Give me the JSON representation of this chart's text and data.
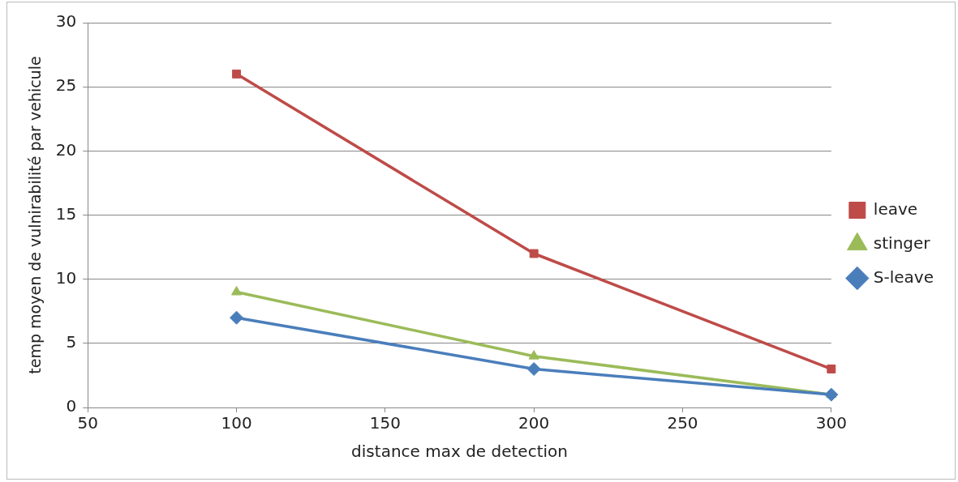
{
  "chart_data": {
    "type": "line",
    "xlabel": "distance max de detection",
    "ylabel": "temp moyen de vulnirabilité par vehicule",
    "x": [
      100,
      200,
      300
    ],
    "series": [
      {
        "name": "leave",
        "color": "#be4b48",
        "values": [
          26,
          12,
          3
        ],
        "marker": "square"
      },
      {
        "name": "stinger",
        "color": "#9bbb59",
        "values": [
          9,
          4,
          1
        ],
        "marker": "triangle"
      },
      {
        "name": "S-leave",
        "color": "#4a7ebb",
        "values": [
          7,
          3,
          1
        ],
        "marker": "diamond"
      }
    ],
    "xlim": [
      50,
      300
    ],
    "xticks": [
      50,
      100,
      150,
      200,
      250,
      300
    ],
    "ylim": [
      0,
      30
    ],
    "yticks": [
      0,
      5,
      10,
      15,
      20,
      25,
      30
    ],
    "grid": "y",
    "legend": "right",
    "line_style": "solid"
  }
}
